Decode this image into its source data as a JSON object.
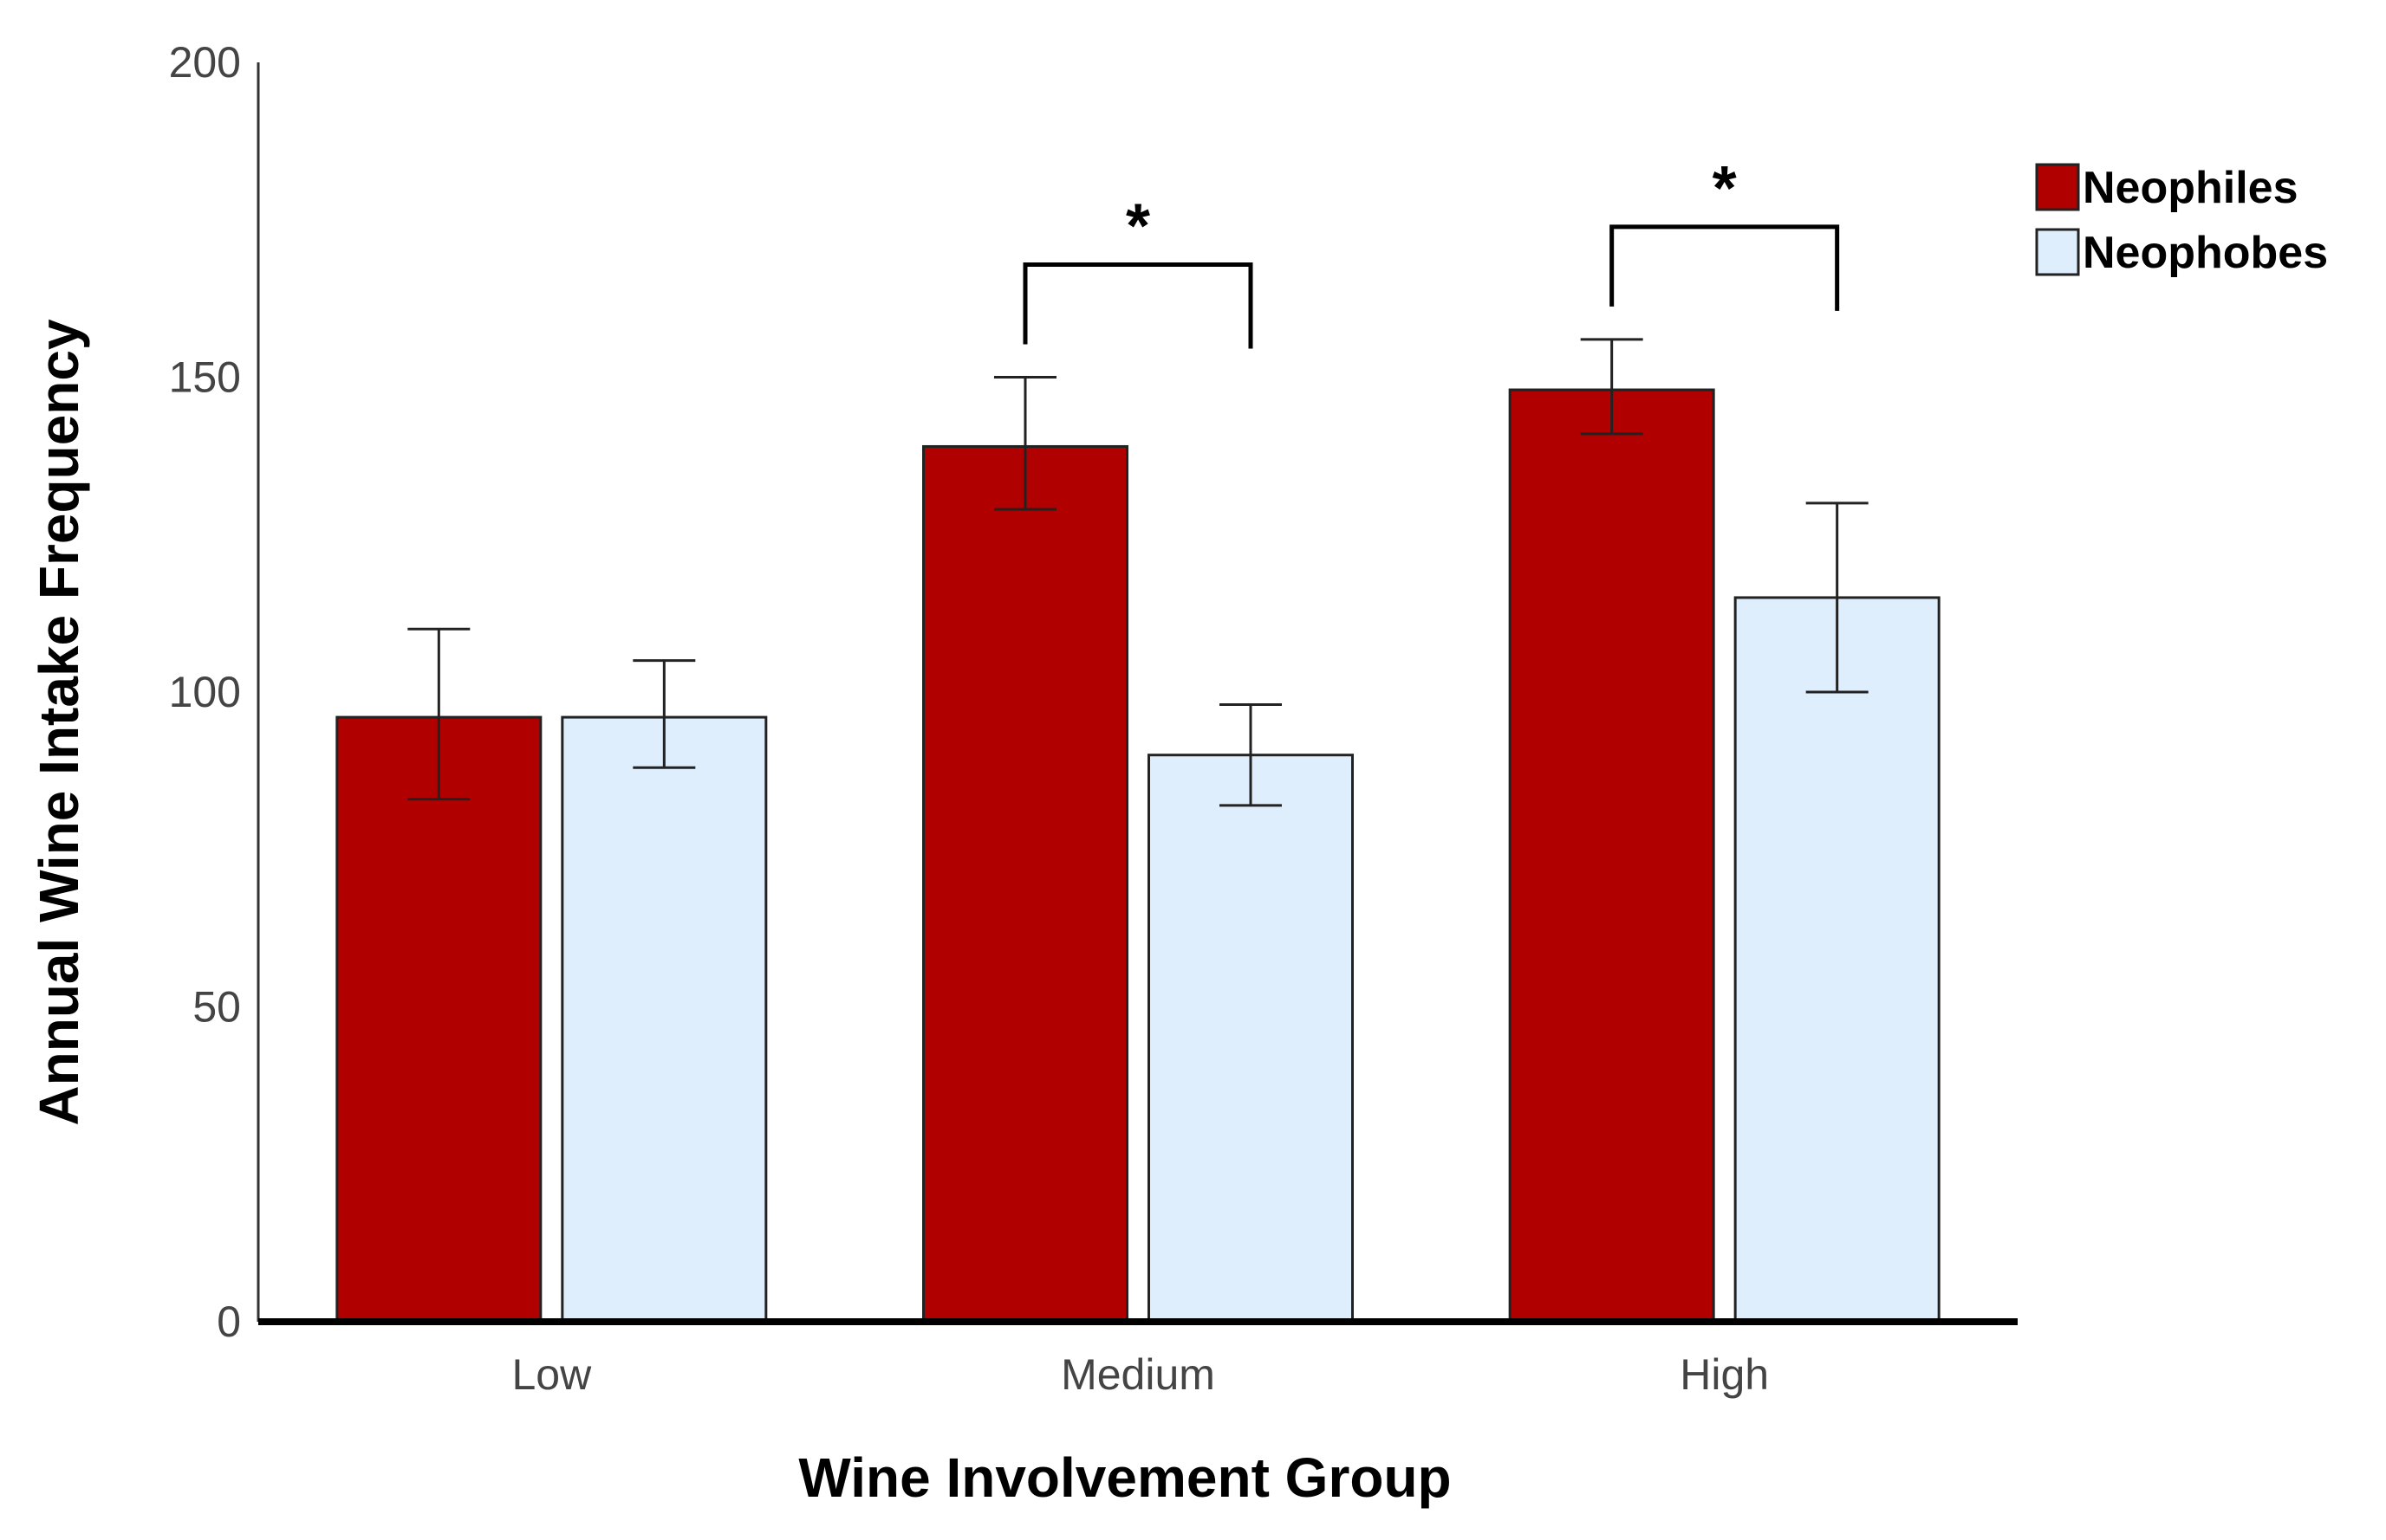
{
  "chart_data": {
    "type": "bar",
    "title": "",
    "xlabel": "Wine Involvement Group",
    "ylabel": "Annual Wine Intake Frequency",
    "categories": [
      "Low",
      "Medium",
      "High"
    ],
    "ylim": [
      0,
      200
    ],
    "yticks": [
      0,
      50,
      100,
      150,
      200
    ],
    "series": [
      {
        "name": "Neophiles",
        "color": "#b00000",
        "values": [
          96,
          139,
          148
        ],
        "error_low": [
          83,
          129,
          141
        ],
        "error_high": [
          110,
          150,
          156
        ]
      },
      {
        "name": "Neophobes",
        "color": "#deeefc",
        "values": [
          96,
          90,
          115
        ],
        "error_low": [
          88,
          82,
          100
        ],
        "error_high": [
          105,
          98,
          130
        ]
      }
    ],
    "significance": [
      {
        "category": "Medium",
        "label": "*"
      },
      {
        "category": "High",
        "label": "*"
      }
    ],
    "legend_position": "top-right",
    "grid": false
  }
}
